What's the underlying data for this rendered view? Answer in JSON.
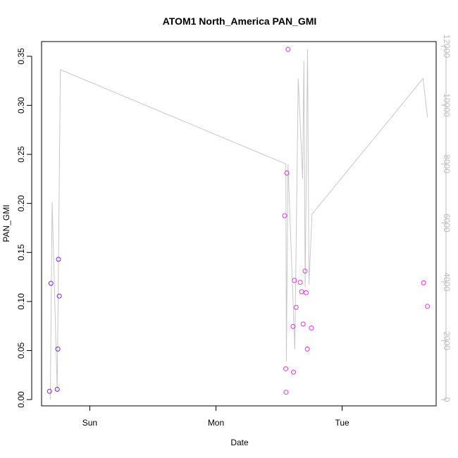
{
  "chart_data": {
    "type": "scatter",
    "title": "ATOM1 North_America PAN_GMI",
    "xlabel": "Date",
    "ylabel": "PAN_GMI",
    "x_ticks": [
      {
        "label": "Sun",
        "t": 1.0
      },
      {
        "label": "Mon",
        "t": 2.0
      },
      {
        "label": "Tue",
        "t": 3.0
      }
    ],
    "xlim": [
      0.618,
      3.745
    ],
    "ylim": [
      -0.0064,
      0.365
    ],
    "y_ticks": [
      0.0,
      0.05,
      0.1,
      0.15,
      0.2,
      0.25,
      0.3,
      0.35
    ],
    "y_tick_labels": [
      "0.00",
      "0.05",
      "0.10",
      "0.15",
      "0.20",
      "0.25",
      "0.30",
      "0.35"
    ],
    "y2lim": [
      -210,
      12155
    ],
    "y2_ticks": [
      0,
      2000,
      4000,
      6000,
      8000,
      10000,
      12000
    ],
    "y2_tick_labels": [
      "0",
      "2000",
      "4000",
      "6000",
      "8000",
      "10000",
      "12000"
    ],
    "colors": {
      "points_early": "#7b22e8",
      "points_late": "#e632e6",
      "line": "#c8c8c8",
      "right_axis": "#bdbdbd"
    },
    "points": [
      {
        "t": 0.681,
        "y": 0.0085,
        "c": "early"
      },
      {
        "t": 0.692,
        "y": 0.1185,
        "c": "early"
      },
      {
        "t": 0.742,
        "y": 0.0105,
        "c": "early"
      },
      {
        "t": 0.747,
        "y": 0.0515,
        "c": "early"
      },
      {
        "t": 0.752,
        "y": 0.143,
        "c": "early"
      },
      {
        "t": 0.758,
        "y": 0.1055,
        "c": "early"
      },
      {
        "t": 2.545,
        "y": 0.1875,
        "c": "late"
      },
      {
        "t": 2.555,
        "y": 0.0075,
        "c": "late"
      },
      {
        "t": 2.553,
        "y": 0.0315,
        "c": "late"
      },
      {
        "t": 2.561,
        "y": 0.231,
        "c": "late"
      },
      {
        "t": 2.571,
        "y": 0.357,
        "c": "late"
      },
      {
        "t": 2.611,
        "y": 0.0745,
        "c": "late"
      },
      {
        "t": 2.614,
        "y": 0.028,
        "c": "late"
      },
      {
        "t": 2.622,
        "y": 0.1215,
        "c": "late"
      },
      {
        "t": 2.635,
        "y": 0.094,
        "c": "late"
      },
      {
        "t": 2.668,
        "y": 0.1195,
        "c": "late"
      },
      {
        "t": 2.679,
        "y": 0.11,
        "c": "late"
      },
      {
        "t": 2.691,
        "y": 0.077,
        "c": "late"
      },
      {
        "t": 2.706,
        "y": 0.131,
        "c": "late"
      },
      {
        "t": 2.715,
        "y": 0.109,
        "c": "late"
      },
      {
        "t": 2.724,
        "y": 0.0515,
        "c": "late"
      },
      {
        "t": 2.756,
        "y": 0.073,
        "c": "late"
      },
      {
        "t": 3.645,
        "y": 0.119,
        "c": "late"
      },
      {
        "t": 3.676,
        "y": 0.095,
        "c": "late"
      }
    ],
    "line_series": [
      {
        "t": 0.687,
        "v": 0
      },
      {
        "t": 0.702,
        "v": 6700
      },
      {
        "t": 0.742,
        "v": 300
      },
      {
        "t": 0.767,
        "v": 11200
      },
      {
        "t": 2.554,
        "v": 8000
      },
      {
        "t": 2.558,
        "v": 1300
      },
      {
        "t": 2.571,
        "v": 8000
      },
      {
        "t": 2.625,
        "v": 1700
      },
      {
        "t": 2.652,
        "v": 10900
      },
      {
        "t": 2.687,
        "v": 7500
      },
      {
        "t": 2.697,
        "v": 11500
      },
      {
        "t": 2.707,
        "v": 3800
      },
      {
        "t": 2.726,
        "v": 11900
      },
      {
        "t": 2.737,
        "v": 3900
      },
      {
        "t": 2.761,
        "v": 6300
      },
      {
        "t": 3.641,
        "v": 10900
      },
      {
        "t": 3.676,
        "v": 9600
      }
    ]
  }
}
